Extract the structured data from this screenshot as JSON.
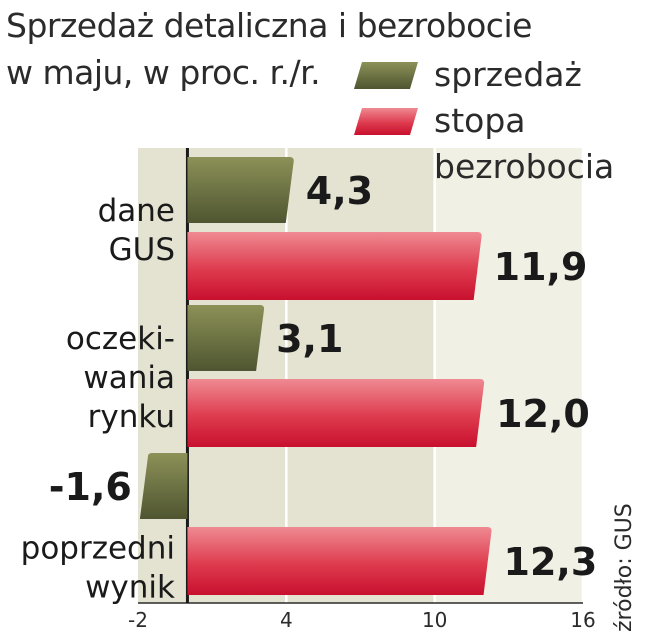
{
  "title": [
    "Sprzedaż detaliczna i bezrobocie",
    "w maju, w proc. r./r."
  ],
  "source": "źródło: GUS",
  "chart_data": {
    "type": "bar",
    "orientation": "horizontal",
    "categories": [
      [
        "dane",
        "GUS"
      ],
      [
        "oczeki-",
        "wania",
        "rynku"
      ],
      [
        "poprzedni",
        "wynik"
      ]
    ],
    "series": [
      {
        "name": "sprzedaż",
        "values": [
          4.3,
          3.1,
          -1.6
        ],
        "value_labels": [
          "4,3",
          "3,1",
          "-1,6"
        ],
        "color": "#6b7140"
      },
      {
        "name": "stopa bezrobocia",
        "values": [
          11.9,
          12.0,
          12.3
        ],
        "value_labels": [
          "11,9",
          "12,0",
          "12,3"
        ],
        "color": "#d6273b"
      }
    ],
    "legend": [
      {
        "label": [
          "sprzedaż"
        ],
        "color": "#6b7140"
      },
      {
        "label": [
          "stopa",
          "bezrobocia"
        ],
        "color": "#d6273b"
      }
    ],
    "xlim": [
      -2,
      16
    ],
    "xticks": [
      -2,
      4,
      10,
      16
    ],
    "xtick_labels": [
      "-2",
      "4",
      "10",
      "16"
    ],
    "grid": true,
    "legend_position": "top-right"
  }
}
